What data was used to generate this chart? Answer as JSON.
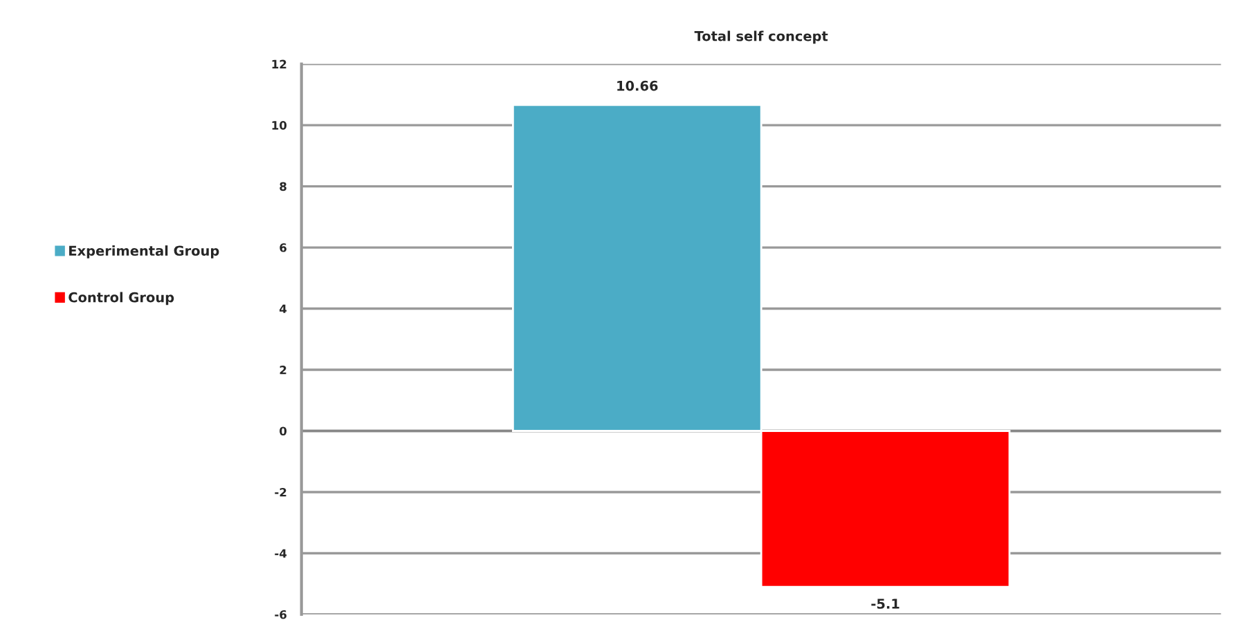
{
  "chart_data": {
    "type": "bar",
    "title": "Total self concept",
    "categories": [
      null
    ],
    "series": [
      {
        "name": "Experimental Group",
        "color": "#4bacc6",
        "values": [
          10.66
        ]
      },
      {
        "name": "Control Group",
        "color": "#ff0000",
        "values": [
          -5.1
        ]
      }
    ],
    "ylim": [
      -6,
      12
    ],
    "yticks": [
      -6,
      -4,
      -2,
      0,
      2,
      4,
      6,
      8,
      10,
      12
    ],
    "grid": "y",
    "legend": "left",
    "data_labels": true
  }
}
